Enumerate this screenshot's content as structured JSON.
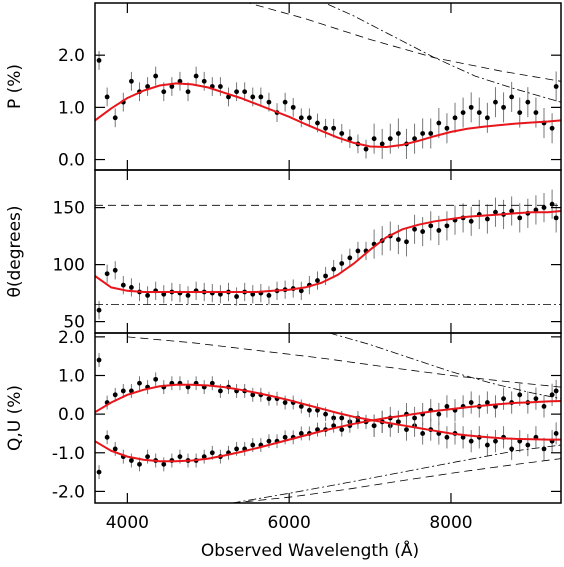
{
  "chart_data": {
    "type": "scatter",
    "xlabel": "Observed Wavelength (Å)",
    "xlim": [
      3600,
      9360
    ],
    "xticks": [
      4000,
      6000,
      8000
    ],
    "panels": [
      {
        "ylabel": "P (%)",
        "ylim": [
          -0.2,
          3.0
        ],
        "yticks": [
          0.0,
          1.0,
          2.0
        ],
        "ytick_labels": [
          "0.0",
          "1.0",
          "2.0"
        ],
        "series": [
          {
            "kind": "points",
            "x": [
              3650,
              3750,
              3850,
              3950,
              4050,
              4150,
              4250,
              4350,
              4450,
              4550,
              4650,
              4750,
              4850,
              4950,
              5050,
              5150,
              5250,
              5350,
              5450,
              5550,
              5650,
              5750,
              5850,
              5950,
              6050,
              6150,
              6250,
              6350,
              6450,
              6550,
              6650,
              6750,
              6850,
              6950,
              7050,
              7150,
              7250,
              7350,
              7450,
              7550,
              7650,
              7750,
              7850,
              7950,
              8050,
              8150,
              8250,
              8350,
              8450,
              8550,
              8650,
              8750,
              8850,
              8950,
              9050,
              9150,
              9250,
              9300
            ],
            "y": [
              1.9,
              1.2,
              0.8,
              1.1,
              1.5,
              1.3,
              1.4,
              1.6,
              1.3,
              1.4,
              1.5,
              1.3,
              1.6,
              1.5,
              1.4,
              1.4,
              1.2,
              1.3,
              1.3,
              1.2,
              1.2,
              1.1,
              0.9,
              1.1,
              1.0,
              0.8,
              0.8,
              0.7,
              0.6,
              0.6,
              0.5,
              0.4,
              0.3,
              0.2,
              0.4,
              0.3,
              0.4,
              0.5,
              0.3,
              0.4,
              0.5,
              0.5,
              0.7,
              0.6,
              0.8,
              0.9,
              1.0,
              0.9,
              0.8,
              1.1,
              1.0,
              1.2,
              0.9,
              1.1,
              0.9,
              0.7,
              0.6,
              1.4
            ]
          },
          {
            "kind": "model",
            "color": "#e8161b",
            "x": [
              3600,
              3800,
              4000,
              4200,
              4400,
              4600,
              4800,
              5000,
              5200,
              5400,
              5600,
              5800,
              6000,
              6200,
              6400,
              6600,
              6800,
              7000,
              7200,
              7400,
              7600,
              7800,
              8000,
              8200,
              8400,
              8600,
              8800,
              9000,
              9200,
              9360
            ],
            "y": [
              0.75,
              0.98,
              1.18,
              1.32,
              1.42,
              1.46,
              1.44,
              1.38,
              1.28,
              1.18,
              1.06,
              0.94,
              0.82,
              0.68,
              0.55,
              0.42,
              0.32,
              0.25,
              0.24,
              0.28,
              0.36,
              0.45,
              0.53,
              0.59,
              0.63,
              0.66,
              0.69,
              0.71,
              0.73,
              0.75
            ]
          },
          {
            "kind": "dashed",
            "x": [
              4800,
              5500,
              6200,
              7000,
              7800,
              8600,
              9360
            ],
            "y": [
              3.2,
              3.0,
              2.7,
              2.3,
              1.95,
              1.7,
              1.5
            ]
          },
          {
            "kind": "dashdot",
            "x": [
              6300,
              6800,
              7300,
              7800,
              8300,
              8800,
              9360
            ],
            "y": [
              3.1,
              2.75,
              2.35,
              1.95,
              1.6,
              1.35,
              1.1
            ]
          }
        ]
      },
      {
        "ylabel": "θ(degrees)",
        "ylim": [
          40,
          183
        ],
        "yticks": [
          50,
          100,
          150
        ],
        "ytick_labels": [
          "50",
          "100",
          "150"
        ],
        "series": [
          {
            "kind": "points",
            "x": [
              3650,
              3750,
              3850,
              3950,
              4050,
              4150,
              4250,
              4350,
              4450,
              4550,
              4650,
              4750,
              4850,
              4950,
              5050,
              5150,
              5250,
              5350,
              5450,
              5550,
              5650,
              5750,
              5850,
              5950,
              6050,
              6150,
              6250,
              6350,
              6450,
              6550,
              6650,
              6750,
              6850,
              6950,
              7050,
              7150,
              7250,
              7350,
              7450,
              7550,
              7650,
              7750,
              7850,
              7950,
              8050,
              8150,
              8250,
              8350,
              8450,
              8550,
              8650,
              8750,
              8850,
              8950,
              9050,
              9150,
              9250,
              9300
            ],
            "y": [
              60,
              92,
              95,
              82,
              80,
              76,
              73,
              77,
              74,
              76,
              75,
              73,
              77,
              76,
              75,
              74,
              76,
              72,
              76,
              74,
              75,
              73,
              77,
              78,
              79,
              77,
              82,
              86,
              90,
              96,
              101,
              106,
              112,
              112,
              118,
              121,
              125,
              122,
              120,
              131,
              129,
              134,
              130,
              134,
              139,
              141,
              138,
              144,
              140,
              146,
              144,
              147,
              141,
              145,
              148,
              150,
              153,
              141
            ]
          },
          {
            "kind": "model",
            "color": "#e8161b",
            "x": [
              3600,
              3800,
              4000,
              4200,
              4400,
              4600,
              4800,
              5000,
              5200,
              5400,
              5600,
              5800,
              6000,
              6200,
              6400,
              6600,
              6800,
              7000,
              7200,
              7400,
              7600,
              7800,
              8000,
              8200,
              8400,
              8600,
              8800,
              9000,
              9200,
              9360
            ],
            "y": [
              90,
              80,
              77,
              76,
              76,
              76,
              76,
              76,
              76,
              76,
              76,
              77,
              78,
              80,
              84,
              91,
              101,
              113,
              124,
              131,
              135,
              138,
              140,
              142,
              143,
              144,
              145,
              146,
              146,
              147
            ]
          },
          {
            "kind": "dashed",
            "x": [
              3600,
              9360
            ],
            "y": [
              152,
              152
            ]
          },
          {
            "kind": "dashdot",
            "x": [
              3600,
              9360
            ],
            "y": [
              65,
              65
            ]
          }
        ]
      },
      {
        "ylabel": "Q,U (%)",
        "ylim": [
          -2.3,
          2.1
        ],
        "yticks": [
          -2.0,
          -1.0,
          0.0,
          1.0,
          2.0
        ],
        "ytick_labels": [
          "-2.0",
          "-1.0",
          "0.0",
          "1.0",
          "2.0"
        ],
        "series": [
          {
            "kind": "points",
            "x": [
              3650,
              3750,
              3850,
              3950,
              4050,
              4150,
              4250,
              4350,
              4450,
              4550,
              4650,
              4750,
              4850,
              4950,
              5050,
              5150,
              5250,
              5350,
              5450,
              5550,
              5650,
              5750,
              5850,
              5950,
              6050,
              6150,
              6250,
              6350,
              6450,
              6550,
              6650,
              6750,
              6850,
              6950,
              7050,
              7150,
              7250,
              7350,
              7450,
              7550,
              7650,
              7750,
              7850,
              7950,
              8050,
              8150,
              8250,
              8350,
              8450,
              8550,
              8650,
              8750,
              8850,
              8950,
              9050,
              9150,
              9250,
              9300
            ],
            "y": [
              1.4,
              0.3,
              0.5,
              0.6,
              0.6,
              0.8,
              0.7,
              0.9,
              0.7,
              0.8,
              0.8,
              0.7,
              0.8,
              0.7,
              0.8,
              0.6,
              0.7,
              0.6,
              0.6,
              0.5,
              0.5,
              0.4,
              0.4,
              0.3,
              0.3,
              0.2,
              0.1,
              0.1,
              0.0,
              -0.1,
              -0.1,
              -0.2,
              -0.1,
              -0.2,
              -0.3,
              -0.2,
              -0.3,
              -0.2,
              -0.4,
              -0.3,
              -0.5,
              -0.4,
              -0.5,
              -0.6,
              -0.5,
              -0.6,
              -0.7,
              -0.6,
              -0.8,
              -0.7,
              -0.6,
              -0.9,
              -0.7,
              -0.8,
              -0.6,
              -0.9,
              -0.7,
              -0.5
            ]
          },
          {
            "kind": "points",
            "x": [
              3650,
              3750,
              3850,
              3950,
              4050,
              4150,
              4250,
              4350,
              4450,
              4550,
              4650,
              4750,
              4850,
              4950,
              5050,
              5150,
              5250,
              5350,
              5450,
              5550,
              5650,
              5750,
              5850,
              5950,
              6050,
              6150,
              6250,
              6350,
              6450,
              6550,
              6650,
              6750,
              6850,
              6950,
              7050,
              7150,
              7250,
              7350,
              7450,
              7550,
              7650,
              7750,
              7850,
              7950,
              8050,
              8150,
              8250,
              8350,
              8450,
              8550,
              8650,
              8750,
              8850,
              8950,
              9050,
              9150,
              9250,
              9300
            ],
            "y": [
              -1.5,
              -0.6,
              -0.9,
              -1.1,
              -1.2,
              -1.3,
              -1.1,
              -1.2,
              -1.3,
              -1.2,
              -1.1,
              -1.2,
              -1.2,
              -1.1,
              -1.0,
              -1.1,
              -1.0,
              -0.9,
              -0.9,
              -0.8,
              -0.8,
              -0.7,
              -0.7,
              -0.6,
              -0.6,
              -0.5,
              -0.5,
              -0.4,
              -0.4,
              -0.3,
              -0.4,
              -0.3,
              -0.2,
              -0.2,
              -0.3,
              -0.2,
              -0.1,
              -0.2,
              0.0,
              -0.1,
              0.0,
              0.1,
              0.0,
              0.2,
              0.1,
              0.2,
              0.3,
              0.2,
              0.3,
              0.2,
              0.4,
              0.3,
              0.5,
              0.3,
              0.4,
              0.2,
              0.5,
              0.6
            ]
          },
          {
            "kind": "model",
            "color": "#e8161b",
            "x": [
              3600,
              3800,
              4000,
              4200,
              4400,
              4600,
              4800,
              5000,
              5200,
              5400,
              5600,
              5800,
              6000,
              6200,
              6400,
              6600,
              6800,
              7000,
              7200,
              7400,
              7600,
              7800,
              8000,
              8200,
              8400,
              8600,
              8800,
              9000,
              9200,
              9360
            ],
            "y": [
              0.05,
              0.3,
              0.5,
              0.63,
              0.72,
              0.76,
              0.76,
              0.74,
              0.7,
              0.63,
              0.55,
              0.46,
              0.36,
              0.25,
              0.14,
              0.03,
              -0.07,
              -0.15,
              -0.22,
              -0.29,
              -0.36,
              -0.43,
              -0.5,
              -0.55,
              -0.59,
              -0.62,
              -0.64,
              -0.65,
              -0.66,
              -0.66
            ]
          },
          {
            "kind": "model",
            "color": "#e8161b",
            "x": [
              3600,
              3800,
              4000,
              4200,
              4400,
              4600,
              4800,
              5000,
              5200,
              5400,
              5600,
              5800,
              6000,
              6200,
              6400,
              6600,
              6800,
              7000,
              7200,
              7400,
              7600,
              7800,
              8000,
              8200,
              8400,
              8600,
              8800,
              9000,
              9200,
              9360
            ],
            "y": [
              -0.7,
              -0.95,
              -1.1,
              -1.18,
              -1.22,
              -1.22,
              -1.2,
              -1.15,
              -1.07,
              -0.98,
              -0.88,
              -0.77,
              -0.66,
              -0.55,
              -0.44,
              -0.34,
              -0.25,
              -0.17,
              -0.1,
              -0.04,
              0.02,
              0.08,
              0.13,
              0.18,
              0.22,
              0.26,
              0.29,
              0.31,
              0.33,
              0.34
            ]
          },
          {
            "kind": "dashed",
            "x": [
              4000,
              4800,
              5600,
              6400,
              7200,
              8000,
              8800,
              9360
            ],
            "y": [
              2.0,
              1.85,
              1.65,
              1.45,
              1.22,
              1.0,
              0.82,
              0.7
            ]
          },
          {
            "kind": "dashed",
            "x": [
              5300,
              6000,
              6700,
              7400,
              8100,
              8800,
              9360
            ],
            "y": [
              -2.3,
              -2.15,
              -1.95,
              -1.72,
              -1.5,
              -1.3,
              -1.15
            ]
          },
          {
            "kind": "dashdot",
            "x": [
              6500,
              7000,
              7500,
              8000,
              8500,
              9000,
              9360
            ],
            "y": [
              2.1,
              1.8,
              1.45,
              1.1,
              0.8,
              0.55,
              0.4
            ]
          },
          {
            "kind": "dashdot",
            "x": [
              5300,
              6000,
              6700,
              7400,
              8100,
              8800,
              9360
            ],
            "y": [
              -2.3,
              -2.05,
              -1.78,
              -1.5,
              -1.22,
              -0.95,
              -0.8
            ]
          }
        ]
      }
    ]
  }
}
